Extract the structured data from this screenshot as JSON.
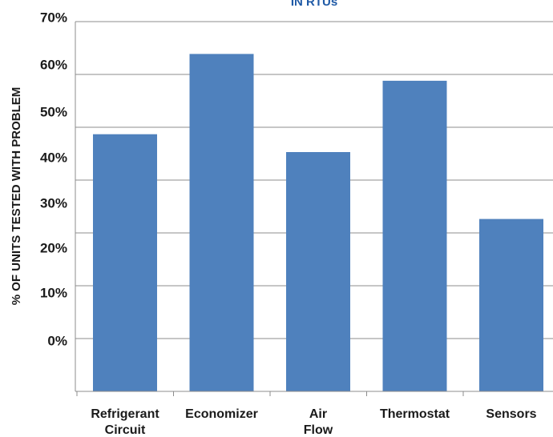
{
  "chart_data": {
    "type": "bar",
    "title": "IN RTUs",
    "xlabel": "",
    "ylabel": "% OF UNITS TESTED WITH PROBLEM",
    "categories": [
      "Refrigerant Circuit",
      "Economizer",
      "Air Flow",
      "Thermostat",
      "Sensors"
    ],
    "values": [
      46,
      64,
      42,
      58,
      27
    ],
    "y_tick_labels": [
      "70%",
      "60%",
      "50%",
      "40%",
      "30%",
      "20%",
      "10%",
      "0%"
    ],
    "ylim": [
      0,
      70
    ],
    "grid": true,
    "legend": "none",
    "bar_color": "#4f81bd"
  }
}
